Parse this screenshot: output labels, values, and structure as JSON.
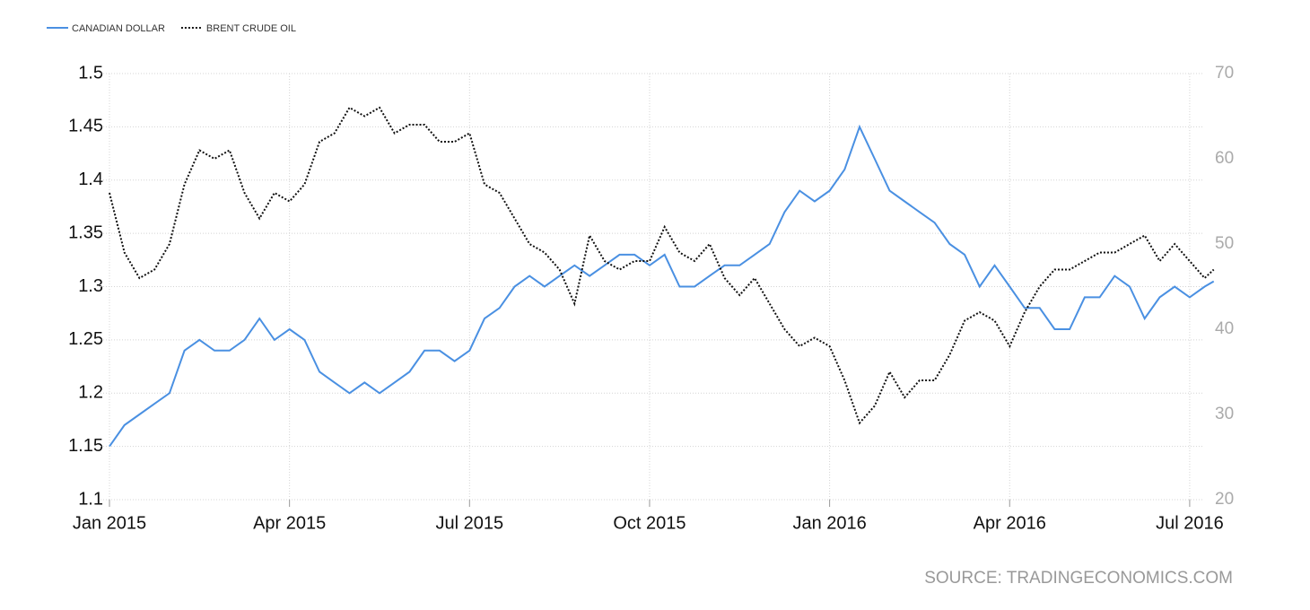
{
  "chart_data": {
    "type": "line",
    "source": "SOURCE: TRADINGECONOMICS.COM",
    "x": [
      0,
      0.25,
      0.5,
      0.75,
      1,
      1.25,
      1.5,
      1.75,
      2,
      2.25,
      2.5,
      2.75,
      3,
      3.25,
      3.5,
      3.75,
      4,
      4.25,
      4.5,
      4.75,
      5,
      5.25,
      5.5,
      5.75,
      6,
      6.25,
      6.5,
      6.75,
      7,
      7.25,
      7.5,
      7.75,
      8,
      8.25,
      8.5,
      8.75,
      9,
      9.25,
      9.5,
      9.75,
      10,
      10.25,
      10.5,
      10.75,
      11,
      11.25,
      11.5,
      11.75,
      12,
      12.25,
      12.5,
      12.75,
      13,
      13.25,
      13.5,
      13.75,
      14,
      14.25,
      14.5,
      14.75,
      15,
      15.25,
      15.5,
      15.75,
      16,
      16.25,
      16.5,
      16.75,
      17,
      17.25,
      17.5,
      17.75,
      18,
      18.25,
      18.4
    ],
    "series": [
      {
        "name": "CANADIAN DOLLAR",
        "color": "#4a90e2",
        "style": "solid",
        "axis": "y",
        "values": [
          1.15,
          1.17,
          1.18,
          1.19,
          1.2,
          1.24,
          1.25,
          1.24,
          1.24,
          1.25,
          1.27,
          1.25,
          1.26,
          1.25,
          1.22,
          1.21,
          1.2,
          1.21,
          1.2,
          1.21,
          1.22,
          1.24,
          1.24,
          1.23,
          1.24,
          1.27,
          1.28,
          1.3,
          1.31,
          1.3,
          1.31,
          1.32,
          1.31,
          1.32,
          1.33,
          1.33,
          1.32,
          1.33,
          1.3,
          1.3,
          1.31,
          1.32,
          1.32,
          1.33,
          1.34,
          1.37,
          1.39,
          1.38,
          1.39,
          1.41,
          1.45,
          1.42,
          1.39,
          1.38,
          1.37,
          1.36,
          1.34,
          1.33,
          1.3,
          1.32,
          1.3,
          1.28,
          1.28,
          1.26,
          1.26,
          1.29,
          1.29,
          1.31,
          1.3,
          1.27,
          1.29,
          1.3,
          1.29,
          1.3,
          1.305
        ]
      },
      {
        "name": "BRENT CRUDE OIL",
        "color": "#111111",
        "style": "dotted",
        "axis": "y2",
        "values": [
          56,
          49,
          46,
          47,
          50,
          57,
          61,
          60,
          61,
          56,
          53,
          56,
          55,
          57,
          62,
          63,
          66,
          65,
          66,
          63,
          64,
          64,
          62,
          62,
          63,
          57,
          56,
          53,
          50,
          49,
          47,
          43,
          51,
          48,
          47,
          48,
          48,
          52,
          49,
          48,
          50,
          46,
          44,
          46,
          43,
          40,
          38,
          39,
          38,
          34,
          29,
          31,
          35,
          32,
          34,
          34,
          37,
          41,
          42,
          41,
          38,
          42,
          45,
          47,
          47,
          48,
          49,
          49,
          50,
          51,
          48,
          50,
          48,
          46,
          47
        ]
      }
    ],
    "xlim": [
      0,
      18.45
    ],
    "xticks": [
      {
        "value": 0,
        "label": "Jan 2015"
      },
      {
        "value": 3,
        "label": "Apr 2015"
      },
      {
        "value": 6,
        "label": "Jul 2015"
      },
      {
        "value": 9,
        "label": "Oct 2015"
      },
      {
        "value": 12,
        "label": "Jan 2016"
      },
      {
        "value": 15,
        "label": "Apr 2016"
      },
      {
        "value": 18,
        "label": "Jul 2016"
      }
    ],
    "ylim": [
      1.1,
      1.5
    ],
    "yticks": [
      1.1,
      1.15,
      1.2,
      1.25,
      1.3,
      1.35,
      1.4,
      1.45,
      1.5
    ],
    "y2lim": [
      20,
      70
    ],
    "y2ticks": [
      20,
      30,
      40,
      50,
      60,
      70
    ],
    "grid": true,
    "legend": "top-left"
  }
}
